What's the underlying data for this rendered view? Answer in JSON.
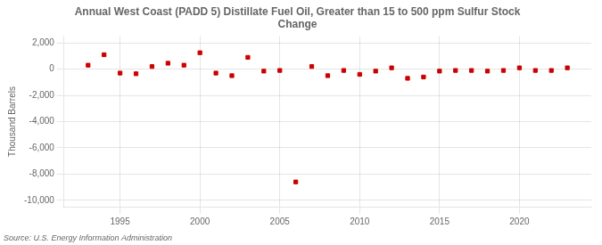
{
  "chart_data": {
    "type": "scatter",
    "title": "Annual West Coast (PADD 5) Distillate Fuel Oil, Greater than 15 to 500 ppm Sulfur Stock\nChange",
    "ylabel": "Thousand Barrels",
    "annotation": "Source: U.S. Energy Information Administration",
    "x": [
      1993,
      1994,
      1995,
      1996,
      1997,
      1998,
      1999,
      2000,
      2001,
      2002,
      2003,
      2004,
      2005,
      2006,
      2007,
      2008,
      2009,
      2010,
      2011,
      2012,
      2013,
      2014,
      2015,
      2016,
      2017,
      2018,
      2019,
      2020,
      2021,
      2022,
      2023
    ],
    "values": [
      300,
      1100,
      -300,
      -350,
      200,
      450,
      300,
      1250,
      -300,
      -500,
      900,
      -150,
      -100,
      -8600,
      200,
      -500,
      -100,
      -400,
      -150,
      100,
      -700,
      -600,
      -150,
      -100,
      -100,
      -150,
      -100,
      100,
      -100,
      -100,
      100
    ],
    "color": "#cc0000",
    "marker": "square",
    "xlim": [
      1991.5,
      2024.5
    ],
    "xticks": [
      1995,
      2000,
      2005,
      2010,
      2015,
      2020
    ],
    "ylim": [
      -10500,
      2500
    ],
    "yticks": [
      {
        "value": -10000,
        "label": "-10,000"
      },
      {
        "value": -8000,
        "label": "-8,000"
      },
      {
        "value": -6000,
        "label": "-6,000"
      },
      {
        "value": -4000,
        "label": "-4,000"
      },
      {
        "value": -2000,
        "label": "-2,000"
      },
      0,
      {
        "value": 2000,
        "label": "2,000"
      }
    ],
    "grid": true
  }
}
